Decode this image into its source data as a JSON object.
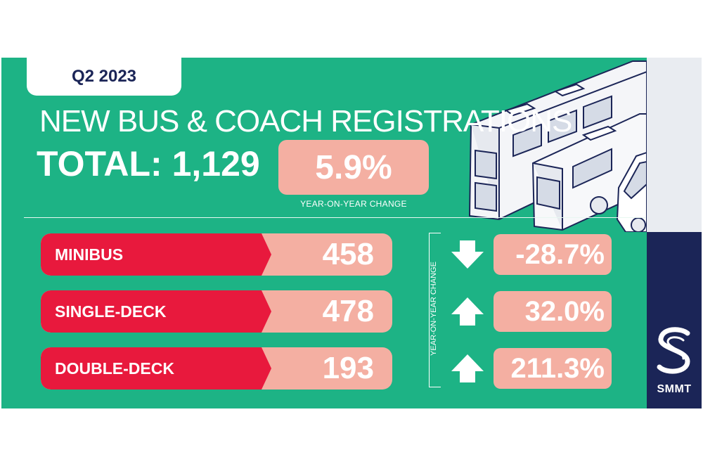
{
  "period": "Q2 2023",
  "headline": "NEW BUS & COACH REGISTRATIONS",
  "total": {
    "label": "TOTAL:",
    "value": "1,129"
  },
  "overall_change": {
    "value": "5.9%",
    "caption": "YEAR-ON-YEAR CHANGE"
  },
  "yoy_axis_label": "YEAR-ON-YEAR CHANGE",
  "segments": [
    {
      "label": "MINIBUS",
      "value": "458",
      "change": "-28.7%",
      "direction": "down",
      "icon": "down-arrow-icon"
    },
    {
      "label": "SINGLE-DECK",
      "value": "478",
      "change": "32.0%",
      "direction": "up",
      "icon": "up-arrow-icon"
    },
    {
      "label": "DOUBLE-DECK",
      "value": "193",
      "change": "211.3%",
      "direction": "up",
      "icon": "up-arrow-icon"
    }
  ],
  "brand": {
    "name": "SMMT",
    "logo_icon": "smmt-s-logo"
  },
  "colors": {
    "panel": "#1db385",
    "label_red": "#e8193d",
    "value_pink": "#f4afa2",
    "navy": "#1b2557"
  }
}
